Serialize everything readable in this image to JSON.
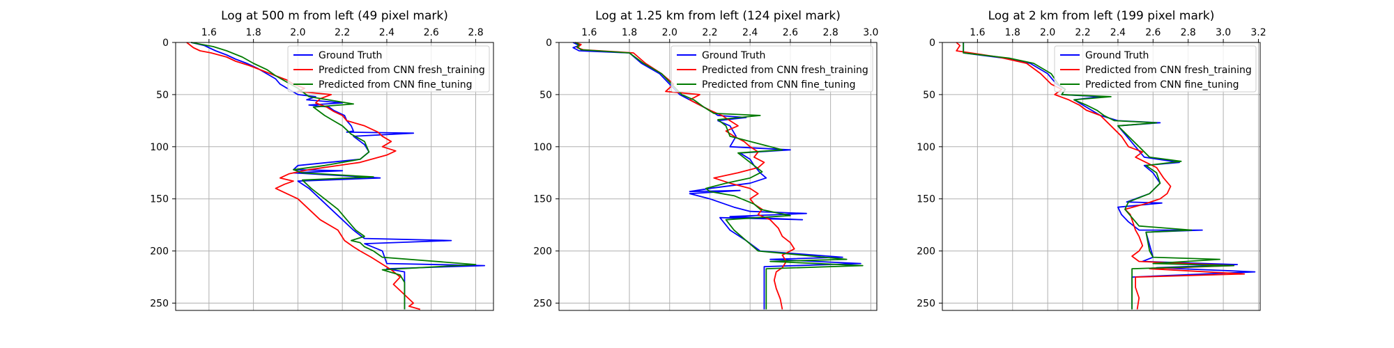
{
  "chart_data": [
    {
      "type": "line",
      "title": "Log at 500 m from left (49 pixel mark)",
      "xlabel": "",
      "ylabel": "",
      "xlim": [
        1.45,
        2.88
      ],
      "ylim": [
        257,
        0
      ],
      "xticks": [
        1.6,
        1.8,
        2.0,
        2.2,
        2.4,
        2.6,
        2.8
      ],
      "xtick_labels": [
        "1.6",
        "1.8",
        "2.0",
        "2.2",
        "2.4",
        "2.6",
        "2.8"
      ],
      "yticks": [
        0,
        50,
        100,
        150,
        200,
        250
      ],
      "ytick_labels": [
        "0",
        "50",
        "100",
        "150",
        "200",
        "250"
      ],
      "x_axis_position": "top",
      "y_axis_inverted": true,
      "grid": true,
      "legend_position": "top-right",
      "series": [
        {
          "name": "Ground Truth",
          "color": "#0000ff",
          "x": [
            1.52,
            1.58,
            1.6,
            1.63,
            1.68,
            1.72,
            1.77,
            1.82,
            1.86,
            1.9,
            1.92,
            1.96,
            2.0,
            2.08,
            2.04,
            2.2,
            2.05,
            2.14,
            2.16,
            2.21,
            2.22,
            2.24,
            2.25,
            2.22,
            2.52,
            2.25,
            2.3,
            2.32,
            2.28,
            2.0,
            1.98,
            2.2,
            1.98,
            2.37,
            2.0,
            2.05,
            2.1,
            2.15,
            2.2,
            2.25,
            2.28,
            2.3,
            2.69,
            2.3,
            2.38,
            2.4,
            2.84,
            2.4,
            2.48,
            2.48,
            2.48,
            2.48
          ],
          "y": [
            0,
            3,
            5,
            8,
            12,
            16,
            20,
            25,
            30,
            35,
            40,
            45,
            50,
            52,
            55,
            58,
            60,
            62,
            65,
            70,
            75,
            80,
            85,
            86,
            87,
            90,
            98,
            105,
            112,
            118,
            122,
            123,
            125,
            130,
            133,
            140,
            150,
            160,
            170,
            180,
            185,
            188,
            190,
            193,
            200,
            212,
            214,
            217,
            220,
            230,
            245,
            256
          ]
        },
        {
          "name": "Predicted from CNN fresh_training",
          "color": "#ff0000",
          "x": [
            1.5,
            1.53,
            1.56,
            1.61,
            1.68,
            1.72,
            1.78,
            1.84,
            1.9,
            1.95,
            1.98,
            2.03,
            2.0,
            2.15,
            2.1,
            2.08,
            2.13,
            2.16,
            2.2,
            2.22,
            2.3,
            2.36,
            2.38,
            2.42,
            2.38,
            2.44,
            2.4,
            2.28,
            2.05,
            1.96,
            1.92,
            1.98,
            1.94,
            1.9,
            1.95,
            2.0,
            2.05,
            2.1,
            2.18,
            2.21,
            2.25,
            2.28,
            2.33,
            2.36,
            2.39,
            2.42,
            2.46,
            2.43,
            2.47,
            2.5,
            2.52,
            2.5,
            2.55
          ],
          "y": [
            0,
            5,
            8,
            10,
            14,
            18,
            22,
            27,
            32,
            36,
            40,
            44,
            47,
            50,
            54,
            58,
            62,
            66,
            70,
            75,
            80,
            86,
            90,
            95,
            100,
            104,
            108,
            115,
            122,
            126,
            130,
            133,
            136,
            140,
            145,
            150,
            160,
            170,
            180,
            190,
            196,
            200,
            206,
            210,
            214,
            218,
            225,
            232,
            240,
            246,
            250,
            253,
            256
          ]
        },
        {
          "name": "Predicted from CNN fine_tuning",
          "color": "#007a00",
          "x": [
            1.52,
            1.62,
            1.68,
            1.75,
            1.8,
            1.86,
            1.9,
            1.95,
            2.0,
            2.05,
            2.25,
            2.07,
            2.12,
            2.16,
            2.2,
            2.24,
            2.3,
            2.32,
            2.28,
            2.12,
            1.98,
            2.02,
            2.34,
            2.02,
            2.06,
            2.12,
            2.18,
            2.22,
            2.26,
            2.3,
            2.24,
            2.28,
            2.3,
            2.34,
            2.38,
            2.8,
            2.38,
            2.46,
            2.48,
            2.48,
            2.48,
            2.48
          ],
          "y": [
            0,
            4,
            8,
            14,
            20,
            26,
            32,
            38,
            44,
            52,
            59,
            62,
            70,
            75,
            80,
            88,
            95,
            105,
            112,
            118,
            122,
            125,
            129,
            132,
            140,
            150,
            160,
            170,
            180,
            186,
            190,
            192,
            196,
            200,
            206,
            213,
            218,
            223,
            230,
            240,
            250,
            256
          ]
        }
      ]
    },
    {
      "type": "line",
      "title": "Log at 1.25 km from left (124 pixel mark)",
      "xlabel": "",
      "ylabel": "",
      "xlim": [
        1.45,
        3.03
      ],
      "ylim": [
        257,
        0
      ],
      "xticks": [
        1.6,
        1.8,
        2.0,
        2.2,
        2.4,
        2.6,
        2.8,
        3.0
      ],
      "xtick_labels": [
        "1.6",
        "1.8",
        "2.0",
        "2.2",
        "2.4",
        "2.6",
        "2.8",
        "3.0"
      ],
      "yticks": [
        0,
        50,
        100,
        150,
        200,
        250
      ],
      "ytick_labels": [
        "0",
        "50",
        "100",
        "150",
        "200",
        "250"
      ],
      "x_axis_position": "top",
      "y_axis_inverted": true,
      "grid": true,
      "legend_position": "top-right",
      "series": [
        {
          "name": "Ground Truth",
          "color": "#0000ff",
          "x": [
            1.52,
            1.55,
            1.52,
            1.55,
            1.8,
            1.86,
            1.95,
            2.0,
            2.05,
            2.1,
            2.15,
            2.2,
            2.24,
            2.38,
            2.24,
            2.3,
            2.33,
            2.3,
            2.6,
            2.35,
            2.4,
            2.42,
            2.45,
            2.48,
            2.4,
            2.2,
            2.1,
            2.35,
            2.1,
            2.2,
            2.32,
            2.4,
            2.68,
            2.3,
            2.66,
            2.25,
            2.3,
            2.38,
            2.45,
            2.86,
            2.5,
            2.95,
            2.47,
            2.47,
            2.47,
            2.47
          ],
          "y": [
            0,
            3,
            5,
            8,
            10,
            20,
            30,
            40,
            50,
            55,
            60,
            65,
            70,
            72,
            75,
            80,
            90,
            100,
            103,
            106,
            112,
            118,
            125,
            130,
            135,
            140,
            143,
            142,
            145,
            150,
            158,
            162,
            164,
            167,
            170,
            168,
            180,
            190,
            200,
            206,
            208,
            212,
            215,
            225,
            240,
            256
          ]
        },
        {
          "name": "Predicted from CNN fresh_training",
          "color": "#ff0000",
          "x": [
            1.53,
            1.56,
            1.54,
            1.57,
            1.82,
            1.88,
            1.96,
            2.02,
            1.98,
            2.15,
            2.1,
            2.15,
            2.2,
            2.26,
            2.3,
            2.34,
            2.28,
            2.32,
            2.37,
            2.4,
            2.44,
            2.42,
            2.47,
            2.44,
            2.34,
            2.22,
            2.3,
            2.4,
            2.44,
            2.4,
            2.42,
            2.46,
            2.44,
            2.5,
            2.54,
            2.56,
            2.6,
            2.62,
            2.56,
            2.58,
            2.56,
            2.53,
            2.52,
            2.53,
            2.55,
            2.56
          ],
          "y": [
            0,
            2,
            5,
            7,
            10,
            20,
            30,
            40,
            47,
            50,
            55,
            60,
            65,
            70,
            75,
            80,
            85,
            90,
            95,
            100,
            105,
            110,
            115,
            120,
            125,
            130,
            135,
            140,
            145,
            150,
            155,
            160,
            165,
            170,
            178,
            186,
            192,
            198,
            204,
            210,
            216,
            220,
            228,
            236,
            246,
            256
          ]
        },
        {
          "name": "Predicted from CNN fine_tuning",
          "color": "#007a00",
          "x": [
            1.53,
            1.55,
            1.54,
            1.56,
            1.8,
            1.87,
            1.96,
            2.01,
            2.06,
            2.12,
            2.17,
            2.22,
            2.45,
            2.24,
            2.28,
            2.3,
            2.56,
            2.34,
            2.38,
            2.42,
            2.46,
            2.4,
            2.28,
            2.18,
            2.2,
            2.32,
            2.42,
            2.45,
            2.6,
            2.28,
            2.32,
            2.38,
            2.44,
            2.88,
            2.5,
            2.96,
            2.48,
            2.48,
            2.48,
            2.48
          ],
          "y": [
            0,
            2,
            4,
            7,
            10,
            20,
            30,
            40,
            50,
            55,
            62,
            68,
            70,
            74,
            80,
            90,
            103,
            106,
            112,
            118,
            124,
            130,
            135,
            140,
            143,
            147,
            155,
            160,
            166,
            170,
            180,
            190,
            200,
            208,
            210,
            214,
            217,
            225,
            240,
            256
          ]
        }
      ]
    },
    {
      "type": "line",
      "title": "Log at 2 km from left (199 pixel mark)",
      "xlabel": "",
      "ylabel": "",
      "xlim": [
        1.4,
        3.21
      ],
      "ylim": [
        257,
        0
      ],
      "xticks": [
        1.6,
        1.8,
        2.0,
        2.2,
        2.4,
        2.6,
        2.8,
        3.0,
        3.2
      ],
      "xtick_labels": [
        "1.6",
        "1.8",
        "2.0",
        "2.2",
        "2.4",
        "2.6",
        "2.8",
        "3.0",
        "3.2"
      ],
      "yticks": [
        0,
        50,
        100,
        150,
        200,
        250
      ],
      "ytick_labels": [
        "0",
        "50",
        "100",
        "150",
        "200",
        "250"
      ],
      "x_axis_position": "top",
      "y_axis_inverted": true,
      "grid": true,
      "legend_position": "top-right",
      "series": [
        {
          "name": "Ground Truth",
          "color": "#0000ff",
          "x": [
            1.52,
            1.52,
            1.75,
            1.9,
            2.0,
            2.05,
            2.1,
            2.08,
            2.3,
            2.15,
            2.2,
            2.25,
            2.3,
            2.4,
            2.64,
            2.4,
            2.45,
            2.5,
            2.55,
            2.75,
            2.55,
            2.6,
            2.64,
            2.58,
            2.45,
            2.65,
            2.4,
            2.42,
            2.46,
            2.52,
            2.88,
            2.56,
            2.6,
            2.54,
            3.08,
            2.62,
            3.18,
            2.48,
            2.48,
            2.48,
            2.48
          ],
          "y": [
            0,
            10,
            15,
            20,
            30,
            40,
            45,
            50,
            52,
            55,
            60,
            65,
            70,
            75,
            77,
            80,
            90,
            100,
            110,
            115,
            118,
            125,
            135,
            145,
            153,
            154,
            158,
            165,
            172,
            180,
            180,
            182,
            206,
            210,
            213,
            216,
            220,
            225,
            230,
            245,
            256
          ]
        },
        {
          "name": "Predicted from CNN fresh_training",
          "color": "#ff0000",
          "x": [
            1.48,
            1.5,
            1.48,
            1.72,
            1.88,
            1.96,
            2.02,
            2.08,
            2.04,
            2.12,
            2.18,
            2.22,
            2.3,
            2.36,
            2.42,
            2.46,
            2.54,
            2.5,
            2.56,
            2.62,
            2.66,
            2.7,
            2.68,
            2.64,
            2.55,
            2.44,
            2.47,
            2.48,
            2.5,
            2.52,
            2.54,
            2.52,
            2.48,
            2.52,
            3.06,
            2.58,
            3.12,
            2.5,
            2.5,
            2.52,
            2.51
          ],
          "y": [
            0,
            3,
            8,
            14,
            20,
            30,
            40,
            45,
            50,
            55,
            60,
            65,
            70,
            80,
            90,
            100,
            105,
            110,
            115,
            120,
            130,
            138,
            145,
            150,
            155,
            160,
            165,
            170,
            180,
            186,
            195,
            200,
            205,
            210,
            214,
            217,
            222,
            225,
            235,
            245,
            256
          ]
        },
        {
          "name": "Predicted from CNN fine_tuning",
          "color": "#007a00",
          "x": [
            1.52,
            1.52,
            1.78,
            1.92,
            2.02,
            2.06,
            2.1,
            2.08,
            2.36,
            2.15,
            2.22,
            2.28,
            2.32,
            2.38,
            2.62,
            2.4,
            2.46,
            2.52,
            2.58,
            2.76,
            2.56,
            2.62,
            2.64,
            2.58,
            2.46,
            2.44,
            2.48,
            2.52,
            2.82,
            2.56,
            2.58,
            2.6,
            2.98,
            2.6,
            3.06,
            2.48,
            2.48,
            2.48,
            2.48
          ],
          "y": [
            0,
            10,
            15,
            20,
            30,
            40,
            45,
            50,
            52,
            55,
            60,
            65,
            70,
            75,
            77,
            80,
            90,
            100,
            110,
            114,
            118,
            125,
            135,
            145,
            153,
            160,
            168,
            176,
            180,
            182,
            200,
            206,
            208,
            212,
            214,
            217,
            225,
            240,
            256
          ]
        }
      ]
    }
  ]
}
